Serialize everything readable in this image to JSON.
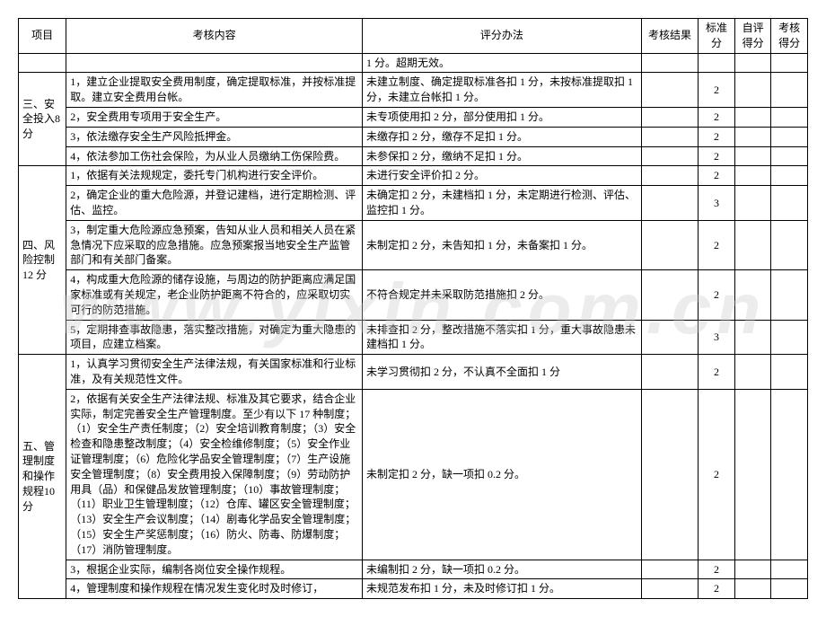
{
  "headers": {
    "project": "项目",
    "content": "考核内容",
    "method": "评分办法",
    "result": "考核结果",
    "std": "标准分",
    "self": "自评得分",
    "eval": "考核得分"
  },
  "watermark": "www.yixin.com.cn",
  "section_pre": {
    "method": "1 分。超期无效。"
  },
  "section3": {
    "title": "三、安全投入8 分",
    "rows": [
      {
        "content": "1，建立企业提取安全费用制度，确定提取标准，并按标准提取。建立安全费用台帐。",
        "method": "未建立制度、确定提取标准各扣 1 分，未按标准提取扣 1 分，未建立台帐扣 1 分。",
        "std": "2"
      },
      {
        "content": "2，安全费用专项用于安全生产。",
        "method": "未专项使用扣 2 分，部分使用扣 1 分。",
        "std": "2"
      },
      {
        "content": "3，依法缴存安全生产风险抵押金。",
        "method": "未缴存扣 2 分，缴存不足扣 1 分。",
        "std": "2"
      },
      {
        "content": "4，依法参加工伤社会保险，为从业人员缴纳工伤保险费。",
        "method": "未参保扣 2 分，缴纳不足扣 1 分。",
        "std": "2"
      }
    ]
  },
  "section4": {
    "title": "四、风险控制12 分",
    "rows": [
      {
        "content": "1，依据有关法规规定，委托专门机构进行安全评价。",
        "method": "未进行安全评价扣 2 分。",
        "std": "2"
      },
      {
        "content": "2，确定企业的重大危险源，并登记建档，进行定期检测、评估、监控。",
        "method": "未确定扣 2 分，未建档扣 1 分，未定期进行检测、评估、监控扣 1 分。",
        "std": "3"
      },
      {
        "content": "3，制定重大危险源应急预案，告知从业人员和相关人员在紧急情况下应采取的应急措施。应急预案报当地安全生产监管部门和有关部门备案。",
        "method": "未制定扣 2 分，未告知扣 1 分，未备案扣 1 分。",
        "std": "2"
      },
      {
        "content": "4，构成重大危险源的储存设施，与周边的防护距离应满足国家标准或有关规定，老企业防护距离不符合的，应采取切实可行的防范措施。",
        "method": "不符合规定并未采取防范措施扣 2 分。",
        "std": "2"
      },
      {
        "content": "5，定期排查事故隐患，落实整改措施，对确定为重大隐患的项目，应建立档案。",
        "method": "未排查扣 2 分，整改措施不落实扣 1 分，重大事故隐患未建档扣 1 分。",
        "std": "3"
      }
    ]
  },
  "section5": {
    "title": "五、管理制度和操作规程10 分",
    "rows": [
      {
        "content": "1，认真学习贯彻安全生产法律法规，有关国家标准和行业标准，及有关规范性文件。",
        "method": "未学习贯彻扣 2 分，不认真不全面扣 1 分",
        "std": "2"
      },
      {
        "content": "2，依据有关安全生产法律法规、标准及其它要求，结合企业实际，制定完善安全生产管理制度。至少有以下 17 种制度；（1）安全生产责任制度；（2）安全培训教育制度；（3）安全检查和隐患整改制度；（4）安全检维修制度；（5）安全作业证管理制度；（6）危险化学品安全管理制度；（7）生产设施安全管理制度；（8）安全费用投入保障制度；（9）劳动防护用具（品）和保健品发放管理制度；（10）事故管理制度；（11）职业卫生管理制度；（12）仓库、罐区安全管理制度；（13）安全生产会议制度；（14）剧毒化学品安全管理制度；（15）安全生产奖惩制度；（16）防火、防毒、防爆制度；（17）消防管理制度。",
        "method": "未制定扣 2 分，缺一项扣 0.2 分。",
        "std": "2"
      },
      {
        "content": "3，根据企业实际，编制各岗位安全操作规程。",
        "method": "未编制扣 2 分，缺一项扣 0.2 分。",
        "std": "2"
      },
      {
        "content": "4，管理制度和操作规程在情况发生变化时及时修订，",
        "method": "未规范发布扣 1 分，未及时修订扣 1 分。",
        "std": "2"
      }
    ]
  }
}
